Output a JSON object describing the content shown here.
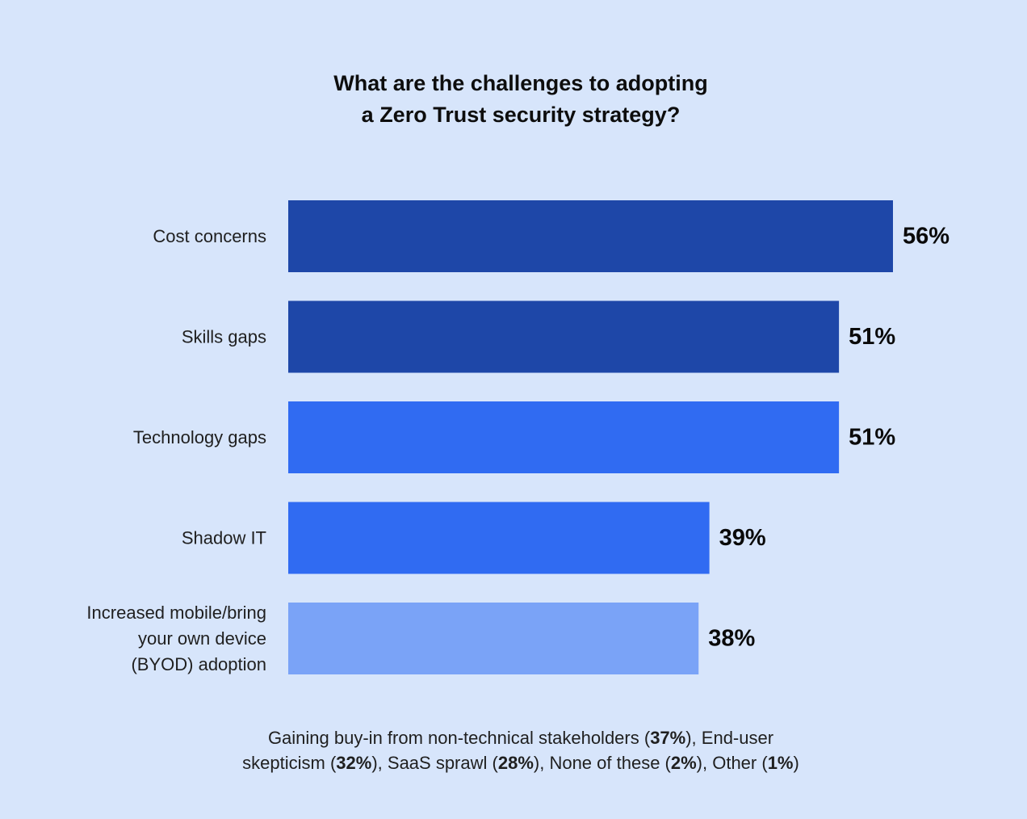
{
  "chart_data": {
    "type": "bar",
    "orientation": "horizontal",
    "title_lines": [
      "What are the challenges to adopting",
      "a Zero Trust security strategy?"
    ],
    "categories": [
      [
        "Cost concerns"
      ],
      [
        "Skills gaps"
      ],
      [
        "Technology gaps"
      ],
      [
        "Shadow IT"
      ],
      [
        "Increased mobile/bring",
        "your own device",
        "(BYOD) adoption"
      ]
    ],
    "values": [
      56,
      51,
      51,
      39,
      38
    ],
    "value_labels": [
      "56%",
      "51%",
      "51%",
      "39%",
      "38%"
    ],
    "bar_colors": [
      "#1e47a8",
      "#1e47a8",
      "#306bf2",
      "#306bf2",
      "#7aa3f7"
    ],
    "xlim": [
      0,
      100
    ],
    "grid": false,
    "legend": "none"
  },
  "footnote": {
    "lines": [
      [
        {
          "text": "Gaining buy-in from non-technical stakeholders (",
          "bold": false
        },
        {
          "text": "37%",
          "bold": true
        },
        {
          "text": "), End-user",
          "bold": false
        }
      ],
      [
        {
          "text": "skepticism (",
          "bold": false
        },
        {
          "text": "32%",
          "bold": true
        },
        {
          "text": "), SaaS sprawl (",
          "bold": false
        },
        {
          "text": "28%",
          "bold": true
        },
        {
          "text": "), None of these (",
          "bold": false
        },
        {
          "text": "2%",
          "bold": true
        },
        {
          "text": "), Other (",
          "bold": false
        },
        {
          "text": "1%",
          "bold": true
        },
        {
          "text": ")",
          "bold": false
        }
      ]
    ]
  },
  "colors": {
    "background": "#d7e5fb",
    "text": "#1a1a1a"
  }
}
